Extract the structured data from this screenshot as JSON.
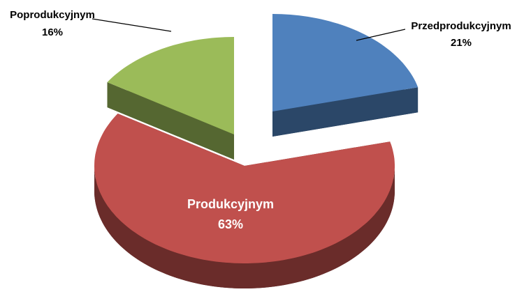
{
  "chart_data": {
    "type": "pie3d",
    "categories": [
      "Przedprodukcyjnym",
      "Produkcyjnym",
      "Poprodukcyjnym"
    ],
    "values": [
      21,
      63,
      16
    ],
    "value_labels": [
      "21%",
      "63%",
      "16%"
    ],
    "colors": [
      "#4f81bd",
      "#c0504d",
      "#9bbb59"
    ],
    "legend": false
  }
}
